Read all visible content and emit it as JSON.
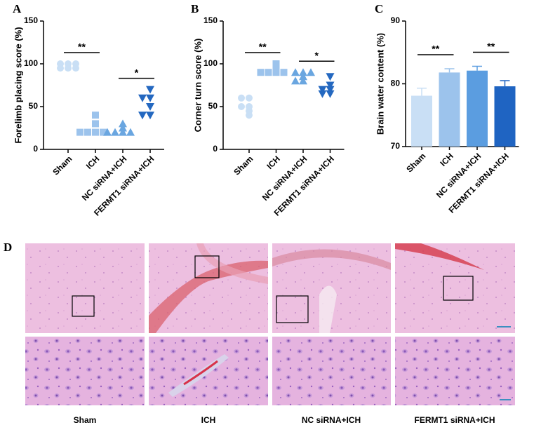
{
  "chart_data": [
    {
      "type": "scatter",
      "label": "A",
      "y_label": "Forelimb placing score (%)",
      "categories": [
        "Sham",
        "ICH",
        "NC siRNA+ICH",
        "FERMT1 siRNA+ICH"
      ],
      "values": [
        [
          100,
          100,
          100,
          95,
          95,
          95
        ],
        [
          40,
          30,
          20,
          20,
          20,
          20
        ],
        [
          30,
          25,
          20,
          20,
          20,
          20
        ],
        [
          70,
          60,
          60,
          50,
          40,
          40
        ]
      ],
      "colors": [
        "#c9dff5",
        "#9cc3ec",
        "#6aa6e0",
        "#2468c0"
      ],
      "markers": [
        "circle",
        "square",
        "triangle-up",
        "triangle-down"
      ],
      "ylim": [
        0,
        150
      ],
      "yticks": [
        0,
        50,
        100,
        150
      ],
      "annotations": [
        {
          "text": "**",
          "from": 0,
          "to": 1
        },
        {
          "text": "*",
          "from": 2,
          "to": 3
        }
      ]
    },
    {
      "type": "scatter",
      "label": "B",
      "y_label": "Corner turn score (%)",
      "categories": [
        "Sham",
        "ICH",
        "NC siRNA+ICH",
        "FERMT1 siRNA+ICH"
      ],
      "values": [
        [
          60,
          60,
          50,
          50,
          45,
          40
        ],
        [
          100,
          95,
          90,
          90,
          90,
          90
        ],
        [
          90,
          90,
          90,
          85,
          80,
          80
        ],
        [
          85,
          75,
          70,
          70,
          65,
          65
        ]
      ],
      "colors": [
        "#c9dff5",
        "#9cc3ec",
        "#6aa6e0",
        "#2468c0"
      ],
      "markers": [
        "circle",
        "square",
        "triangle-up",
        "triangle-down"
      ],
      "ylim": [
        0,
        150
      ],
      "yticks": [
        0,
        50,
        100,
        150
      ],
      "annotations": [
        {
          "text": "**",
          "from": 0,
          "to": 1
        },
        {
          "text": "*",
          "from": 2,
          "to": 3
        }
      ]
    },
    {
      "type": "bar",
      "label": "C",
      "y_label": "Brain water content (%)",
      "categories": [
        "Sham",
        "ICH",
        "NC siRNA+ICH",
        "FERMT1 siRNA+ICH"
      ],
      "values": [
        78.1,
        81.8,
        82.1,
        79.6
      ],
      "errors": [
        1.2,
        0.6,
        0.7,
        0.9
      ],
      "colors": [
        "#c9dff5",
        "#9cc3ec",
        "#5b9de0",
        "#1f64c2"
      ],
      "ylim": [
        70,
        90
      ],
      "yticks": [
        70,
        80,
        90
      ],
      "annotations": [
        {
          "text": "**",
          "from": 0,
          "to": 1
        },
        {
          "text": "**",
          "from": 2,
          "to": 3
        }
      ]
    }
  ],
  "panel_d": {
    "label": "D",
    "captions": [
      "Sham",
      "ICH",
      "NC siRNA+ICH",
      "FERMT1 siRNA+ICH"
    ]
  }
}
